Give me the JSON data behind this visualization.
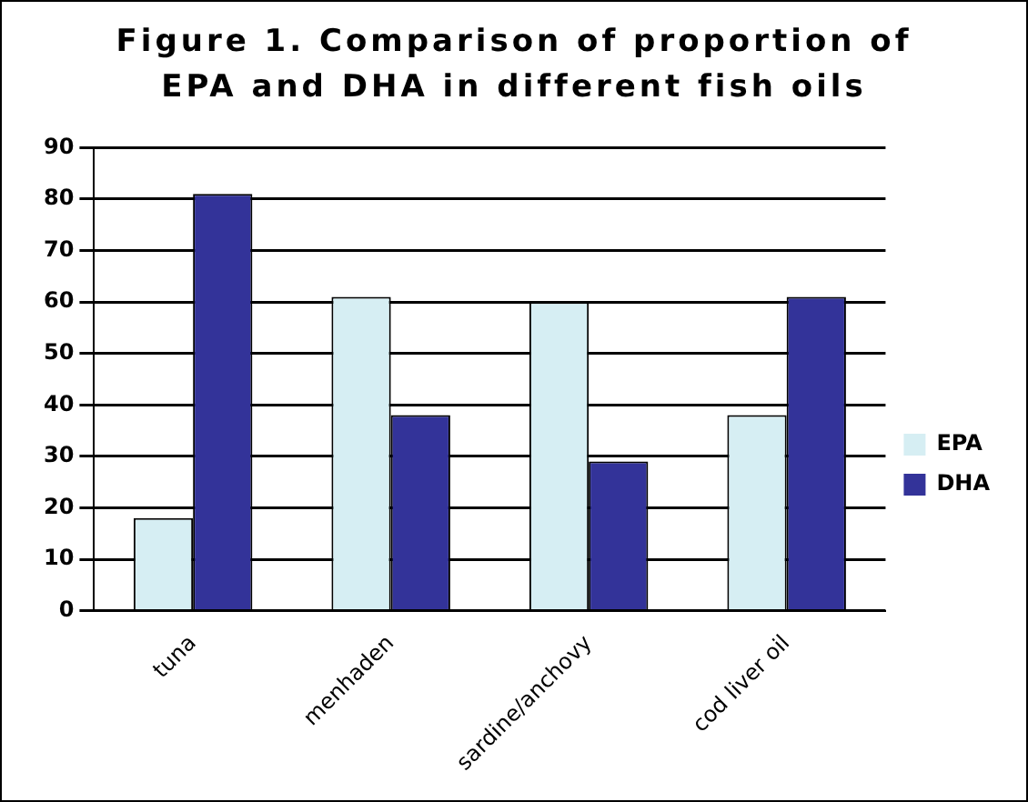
{
  "chart_data": {
    "type": "bar",
    "title": "Figure 1. Comparison of proportion of EPA and DHA in different fish oils",
    "categories": [
      "tuna",
      "menhaden",
      "sardine/anchovy",
      "cod liver oil"
    ],
    "series": [
      {
        "name": "EPA",
        "color": "#d6eef3",
        "values": [
          18,
          61,
          60,
          38
        ]
      },
      {
        "name": "DHA",
        "color": "#333399",
        "values": [
          81,
          38,
          29,
          61
        ]
      }
    ],
    "ylim": [
      0,
      90
    ],
    "yticks": [
      0,
      10,
      20,
      30,
      40,
      50,
      60,
      70,
      80,
      90
    ],
    "grid": "y",
    "legend": "right"
  }
}
